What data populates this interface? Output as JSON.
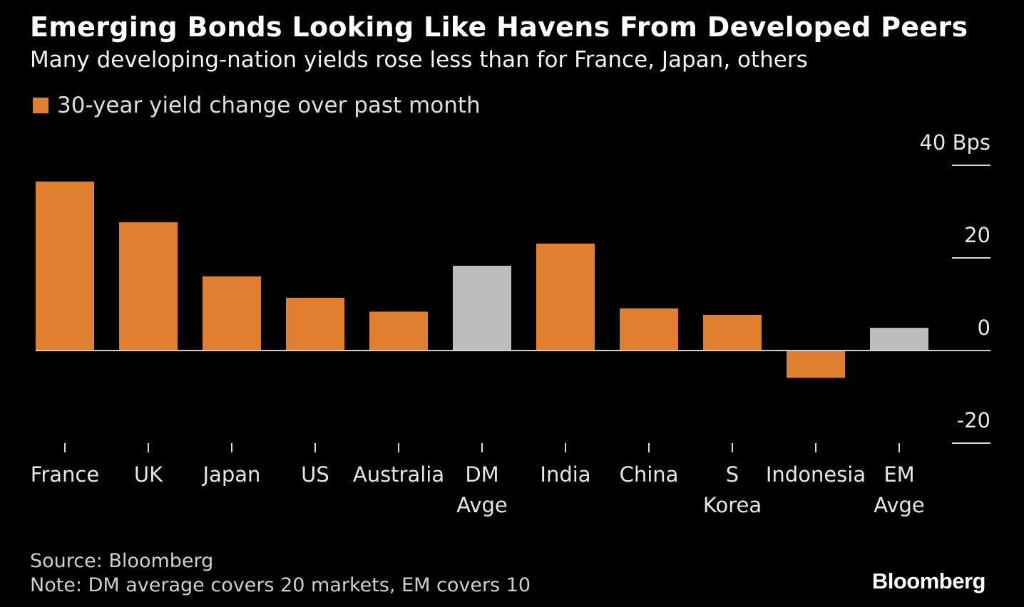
{
  "title": "Emerging Bonds Looking Like Havens From Developed Peers",
  "subtitle": "Many developing-nation yields rose less than for France, Japan, others",
  "legend_label": "30-year yield change over past month",
  "source": "Source: Bloomberg",
  "note": "Note: DM average covers 20 markets, EM covers 10",
  "brand": "Bloomberg",
  "colors": {
    "series": "#e07f2f",
    "average": "#bdbdbd",
    "zero_line": "#cfcfcf",
    "axis_tick": "#d9d9d9",
    "background": "#000000"
  },
  "chart_data": {
    "type": "bar",
    "categories": [
      [
        "France"
      ],
      [
        "UK"
      ],
      [
        "Japan"
      ],
      [
        "US"
      ],
      [
        "Australia"
      ],
      [
        "DM",
        "Avge"
      ],
      [
        "India"
      ],
      [
        "China"
      ],
      [
        "S",
        "Korea"
      ],
      [
        "Indonesia"
      ],
      [
        "EM",
        "Avge"
      ]
    ],
    "values": [
      36.5,
      27.7,
      16.0,
      11.4,
      8.4,
      18.3,
      23.1,
      9.1,
      7.7,
      -5.9,
      4.9
    ],
    "highlight": [
      false,
      false,
      false,
      false,
      false,
      true,
      false,
      false,
      false,
      false,
      true
    ],
    "series": [
      {
        "name": "30-year yield change over past month",
        "values": [
          36.5,
          27.7,
          16.0,
          11.4,
          8.4,
          18.3,
          23.1,
          9.1,
          7.7,
          -5.9,
          4.9
        ]
      }
    ],
    "ylim": [
      -20,
      40
    ],
    "yticks": [
      40,
      20,
      0,
      -20
    ],
    "ytick_labels": [
      "40",
      "20",
      "0",
      "-20"
    ],
    "yunit": "Bps",
    "axis_side": "right",
    "legend_position": "top-left",
    "grid": false
  }
}
